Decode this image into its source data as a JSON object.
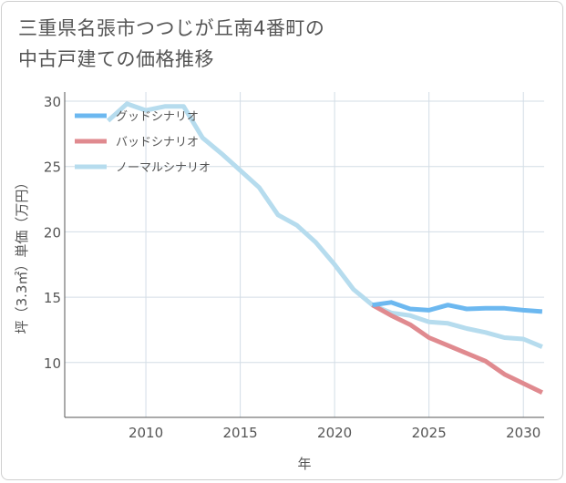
{
  "title_lines": [
    "三重県名張市つつじが丘南4番町の",
    "中古戸建ての価格推移"
  ],
  "chart_data": {
    "type": "line",
    "title": "三重県名張市つつじが丘南4番町の中古戸建ての価格推移",
    "xlabel": "年",
    "ylabel": "坪（3.3㎡）単価（万円）",
    "xlim": [
      2005.7,
      2031.1
    ],
    "ylim": [
      5.8,
      30.7
    ],
    "xticks": [
      2010,
      2015,
      2020,
      2025,
      2030
    ],
    "yticks": [
      10,
      15,
      20,
      25,
      30
    ],
    "grid": true,
    "legend_position": "top-left",
    "series": [
      {
        "name": "グッドシナリオ",
        "color": "#6cb8f0",
        "x": [
          2022,
          2023,
          2024,
          2025,
          2026,
          2027,
          2028,
          2029,
          2030,
          2031
        ],
        "values": [
          14.4,
          14.6,
          14.1,
          14.0,
          14.4,
          14.1,
          14.15,
          14.15,
          14.0,
          13.9
        ]
      },
      {
        "name": "バッドシナリオ",
        "color": "#e08a8f",
        "x": [
          2022,
          2023,
          2024,
          2025,
          2026,
          2027,
          2028,
          2029,
          2030,
          2031
        ],
        "values": [
          14.4,
          13.6,
          12.9,
          11.9,
          11.3,
          10.7,
          10.1,
          9.1,
          8.4,
          7.7
        ]
      },
      {
        "name": "ノーマルシナリオ",
        "color": "#b6dcee",
        "x": [
          2008,
          2009,
          2010,
          2011,
          2012,
          2013,
          2014,
          2015,
          2016,
          2017,
          2018,
          2019,
          2020,
          2021,
          2022,
          2023,
          2024,
          2025,
          2026,
          2027,
          2028,
          2029,
          2030,
          2031
        ],
        "values": [
          28.5,
          29.8,
          29.3,
          29.6,
          29.6,
          27.2,
          26.0,
          24.7,
          23.4,
          21.3,
          20.5,
          19.2,
          17.5,
          15.6,
          14.4,
          13.8,
          13.6,
          13.1,
          13.0,
          12.6,
          12.3,
          11.9,
          11.8,
          11.2
        ]
      }
    ]
  }
}
